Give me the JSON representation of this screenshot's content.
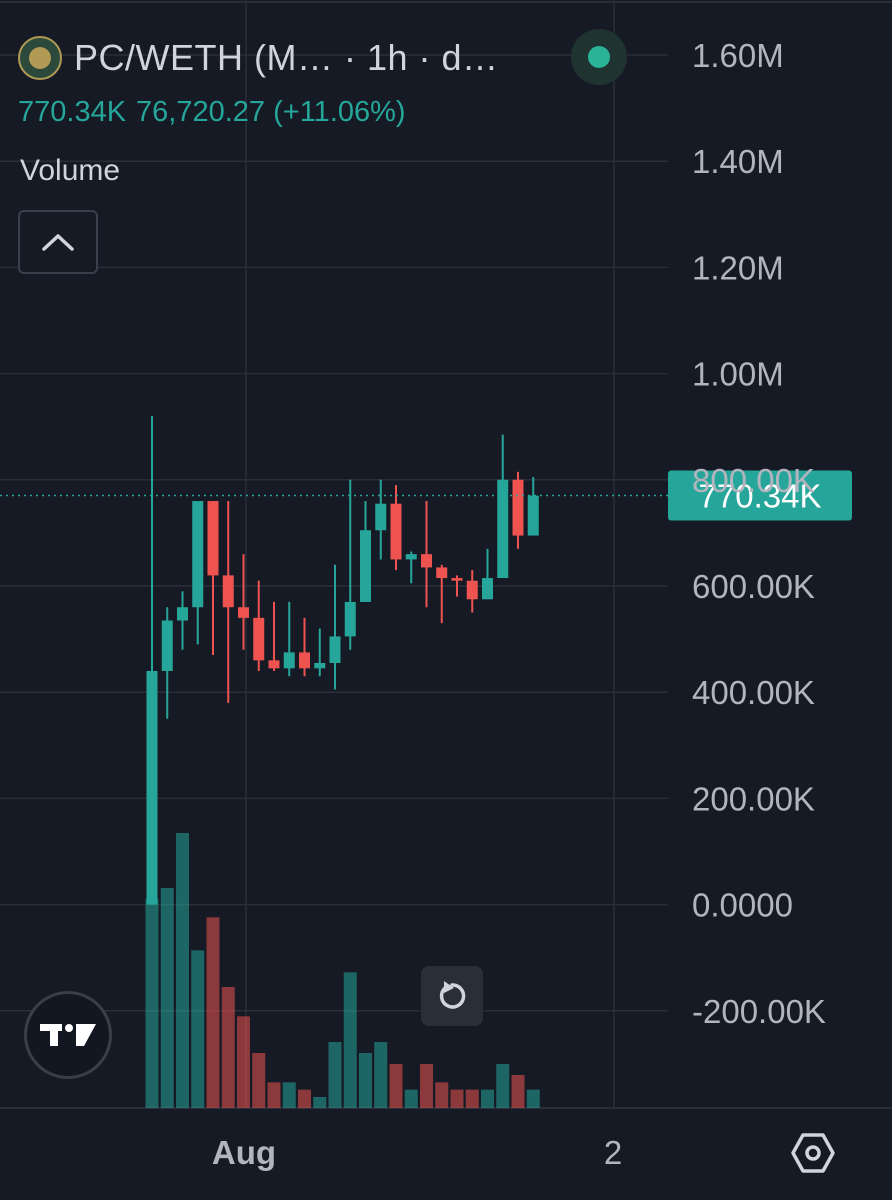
{
  "header": {
    "title": "PC/WETH (M…  · 1h · d…",
    "price": "770.34K",
    "change": "76,720.27 (+11.06%)",
    "status_color": "#2ab396"
  },
  "indicator": {
    "label": "Volume"
  },
  "colors": {
    "background": "#161a25",
    "up": "#26a69a",
    "down": "#ef5350",
    "grid": "#2a2e39",
    "price_line": "#26a69a"
  },
  "icons": {
    "logo": "pc-token-logo-icon",
    "collapse": "chevron-up-icon",
    "reset": "reset-icon",
    "settings": "settings-hexagon-icon",
    "brand": "tradingview-logo-icon"
  },
  "chart_data": {
    "type": "candlestick",
    "title": "PC/WETH (M…  · 1h · d…",
    "y_axis": {
      "ticks": [
        1600000,
        1400000,
        1200000,
        1000000,
        800000,
        600000,
        400000,
        200000,
        0,
        -200000
      ],
      "tick_labels": [
        "1.60M",
        "1.40M",
        "1.20M",
        "1.00M",
        "800.00K",
        "600.00K",
        "400.00K",
        "200.00K",
        "0.0000",
        "-200.00K"
      ],
      "range": [
        -380000,
        1680000
      ]
    },
    "x_axis": {
      "tick_labels": [
        "Aug",
        "2"
      ]
    },
    "last_price": 770340,
    "last_price_label": "770.34K",
    "candles": [
      {
        "o": 0,
        "h": 920000,
        "l": 0,
        "c": 440000
      },
      {
        "o": 440000,
        "h": 560000,
        "l": 350000,
        "c": 535000
      },
      {
        "o": 535000,
        "h": 590000,
        "l": 480000,
        "c": 560000
      },
      {
        "o": 560000,
        "h": 750000,
        "l": 490000,
        "c": 760000
      },
      {
        "o": 760000,
        "h": 760000,
        "l": 470000,
        "c": 620000
      },
      {
        "o": 620000,
        "h": 760000,
        "l": 380000,
        "c": 560000
      },
      {
        "o": 560000,
        "h": 660000,
        "l": 480000,
        "c": 540000
      },
      {
        "o": 540000,
        "h": 610000,
        "l": 440000,
        "c": 460000
      },
      {
        "o": 460000,
        "h": 570000,
        "l": 440000,
        "c": 445000
      },
      {
        "o": 445000,
        "h": 570000,
        "l": 430000,
        "c": 475000
      },
      {
        "o": 475000,
        "h": 540000,
        "l": 430000,
        "c": 445000
      },
      {
        "o": 445000,
        "h": 520000,
        "l": 430000,
        "c": 455000
      },
      {
        "o": 455000,
        "h": 640000,
        "l": 405000,
        "c": 505000
      },
      {
        "o": 505000,
        "h": 800000,
        "l": 480000,
        "c": 570000
      },
      {
        "o": 570000,
        "h": 760000,
        "l": 570000,
        "c": 705000
      },
      {
        "o": 705000,
        "h": 800000,
        "l": 650000,
        "c": 755000
      },
      {
        "o": 755000,
        "h": 790000,
        "l": 630000,
        "c": 650000
      },
      {
        "o": 650000,
        "h": 665000,
        "l": 605000,
        "c": 660000
      },
      {
        "o": 660000,
        "h": 760000,
        "l": 560000,
        "c": 635000
      },
      {
        "o": 635000,
        "h": 640000,
        "l": 530000,
        "c": 615000
      },
      {
        "o": 615000,
        "h": 620000,
        "l": 580000,
        "c": 610000
      },
      {
        "o": 610000,
        "h": 630000,
        "l": 550000,
        "c": 575000
      },
      {
        "o": 575000,
        "h": 670000,
        "l": 575000,
        "c": 615000
      },
      {
        "o": 615000,
        "h": 885000,
        "l": 615000,
        "c": 800000
      },
      {
        "o": 800000,
        "h": 815000,
        "l": 670000,
        "c": 695000
      },
      {
        "o": 695000,
        "h": 805000,
        "l": 695000,
        "c": 770340
      }
    ],
    "volume": [
      0.57,
      0.6,
      0.75,
      0.43,
      0.52,
      0.33,
      0.25,
      0.15,
      0.07,
      0.07,
      0.05,
      0.03,
      0.18,
      0.37,
      0.15,
      0.18,
      0.12,
      0.05,
      0.12,
      0.07,
      0.05,
      0.05,
      0.05,
      0.12,
      0.09,
      0.05
    ]
  }
}
